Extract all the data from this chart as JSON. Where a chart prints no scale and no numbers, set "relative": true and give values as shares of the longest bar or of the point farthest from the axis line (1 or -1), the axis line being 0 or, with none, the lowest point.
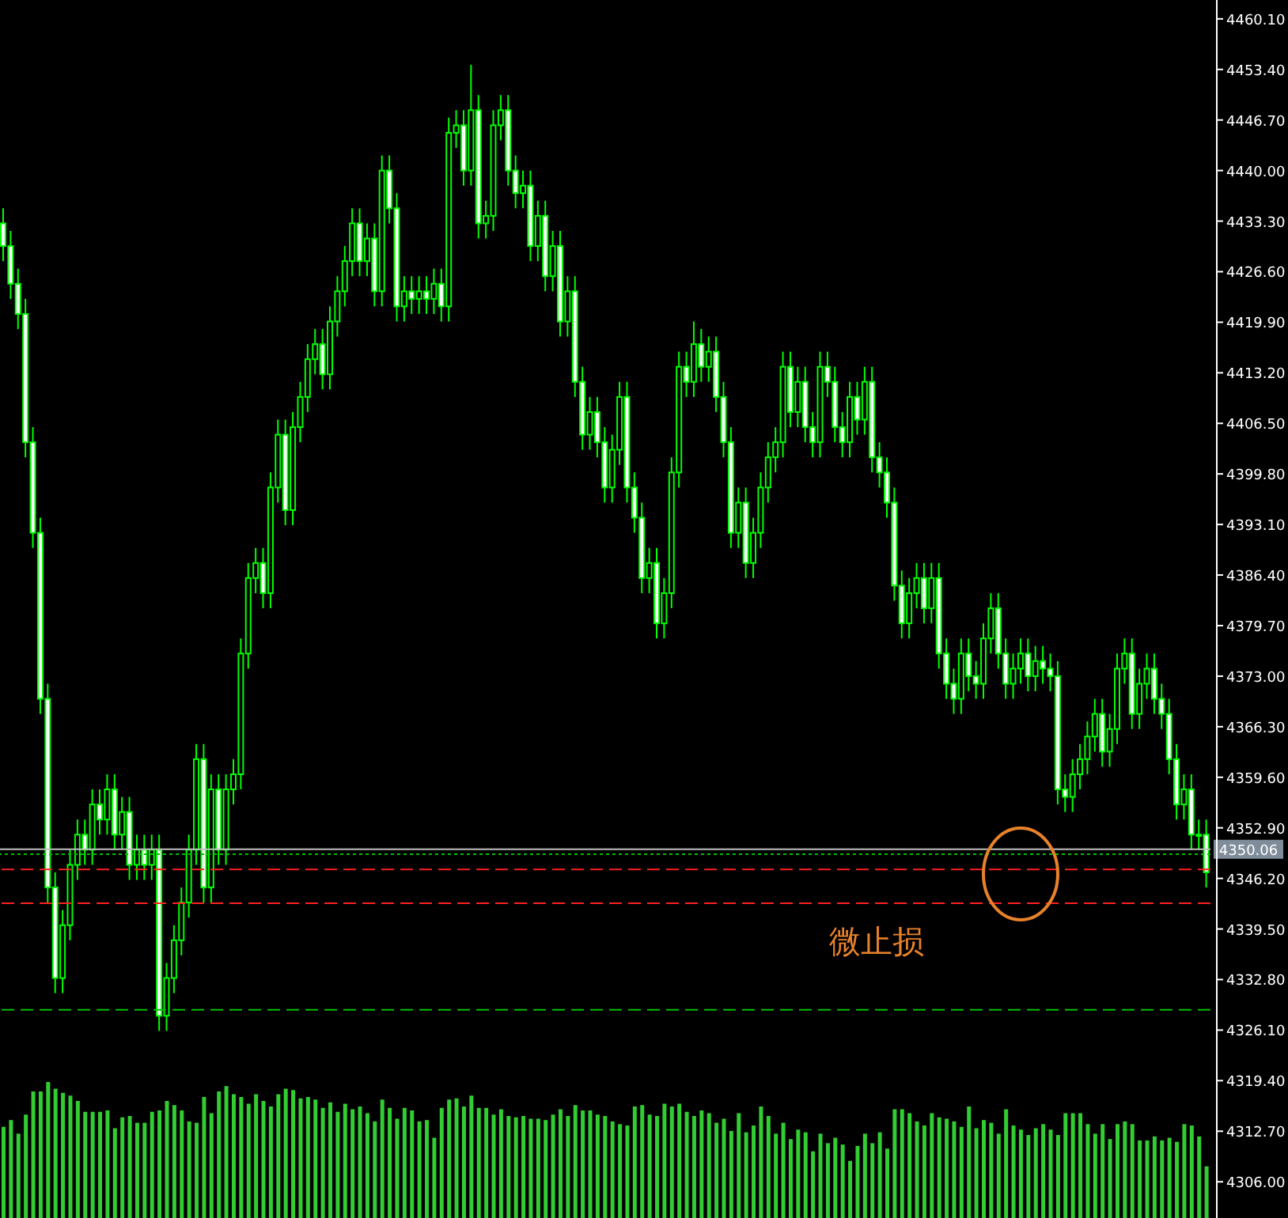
{
  "chart_data": [
    {
      "type": "candlestick",
      "color": "#00ff00",
      "ylim": [
        4301.2,
        4462.6
      ],
      "colors": [
        "#ffffff",
        "#ffffff",
        "#ffffff",
        "#ffffff",
        "#ffffff",
        "#ffffff",
        "#ffffff",
        "#ffffff",
        "#000000",
        "#000000",
        "#000000",
        "#ffffff",
        "#000000",
        "#ffffff",
        "#000000",
        "#ffffff",
        "#000000",
        "#ffffff",
        "#000000",
        "#ffffff",
        "#000000",
        "#ffffff",
        "#000000",
        "#000000",
        "#000000",
        "#000000",
        "#000000",
        "#ffffff",
        "#000000",
        "#ffffff",
        "#000000",
        "#000000",
        "#000000",
        "#000000",
        "#000000",
        "#ffffff",
        "#000000",
        "#000000",
        "#ffffff",
        "#000000",
        "#000000",
        "#000000",
        "#000000",
        "#ffffff",
        "#000000",
        "#000000",
        "#000000",
        "#000000",
        "#ffffff",
        "#000000",
        "#ffffff",
        "#000000",
        "#ffffff",
        "#ffffff",
        "#000000",
        "#ffffff",
        "#000000",
        "#ffffff",
        "#000000",
        "#ffffff",
        "#000000",
        "#000000",
        "#ffffff",
        "#000000",
        "#ffffff",
        "#000000",
        "#000000",
        "#000000",
        "#ffffff",
        "#ffffff",
        "#000000",
        "#ffffff",
        "#000000",
        "#ffffff",
        "#000000",
        "#ffffff",
        "#000000",
        "#ffffff",
        "#ffffff",
        "#000000",
        "#ffffff",
        "#ffffff",
        "#000000",
        "#000000",
        "#ffffff",
        "#ffffff",
        "#ffffff",
        "#000000",
        "#ffffff",
        "#000000",
        "#000000",
        "#000000",
        "#ffffff",
        "#000000",
        "#ffffff",
        "#000000",
        "#ffffff",
        "#ffffff",
        "#ffffff",
        "#000000",
        "#ffffff",
        "#000000",
        "#000000",
        "#000000",
        "#000000",
        "#000000",
        "#ffffff",
        "#000000",
        "#ffffff",
        "#ffffff",
        "#000000",
        "#ffffff",
        "#ffffff",
        "#ffffff",
        "#000000",
        "#ffffff",
        "#000000",
        "#ffffff",
        "#ffffff",
        "#ffffff",
        "#ffffff",
        "#ffffff",
        "#000000",
        "#000000",
        "#ffffff",
        "#000000",
        "#ffffff",
        "#ffffff",
        "#ffffff",
        "#000000",
        "#ffffff",
        "#ffffff",
        "#000000",
        "#000000",
        "#ffffff",
        "#ffffff",
        "#000000",
        "#000000",
        "#ffffff",
        "#000000",
        "#ffffff",
        "#ffffff",
        "#ffffff",
        "#ffffff",
        "#000000",
        "#000000",
        "#000000",
        "#000000",
        "#ffffff",
        "#000000",
        "#000000",
        "#000000",
        "#ffffff",
        "#000000",
        "#000000",
        "#ffffff",
        "#ffffff",
        "#ffffff",
        "#ffffff",
        "#000000",
        "#ffffff",
        "#000000",
        "#ffffff"
      ],
      "yticks": [
        {
          "value": 4306,
          "label": "4306.00"
        },
        {
          "value": 4312.7,
          "label": "4312.70"
        },
        {
          "value": 4319.4,
          "label": "4319.40"
        },
        {
          "value": 4326.1,
          "label": "4326.10"
        },
        {
          "value": 4332.8,
          "label": "4332.80"
        },
        {
          "value": 4339.5,
          "label": "4339.50"
        },
        {
          "value": 4346.2,
          "label": "4346.20"
        },
        {
          "value": 4352.9,
          "label": "4352.90"
        },
        {
          "value": 4359.6,
          "label": "4359.60"
        },
        {
          "value": 4366.3,
          "label": "4366.30"
        },
        {
          "value": 4373,
          "label": "4373.00"
        },
        {
          "value": 4379.7,
          "label": "4379.70"
        },
        {
          "value": 4386.4,
          "label": "4386.40"
        },
        {
          "value": 4393.1,
          "label": "4393.10"
        },
        {
          "value": 4399.8,
          "label": "4399.80"
        },
        {
          "value": 4406.5,
          "label": "4406.50"
        },
        {
          "value": 4413.2,
          "label": "4413.20"
        },
        {
          "value": 4419.9,
          "label": "4419.90"
        },
        {
          "value": 4426.6,
          "label": "4426.60"
        },
        {
          "value": 4433.3,
          "label": "4433.30"
        },
        {
          "value": 4440,
          "label": "4440.00"
        },
        {
          "value": 4446.7,
          "label": "4446.70"
        },
        {
          "value": 4453.4,
          "label": "4453.40"
        },
        {
          "value": 4460.1,
          "label": "4460.10"
        }
      ],
      "tick_labels": "y",
      "annotations": [
        "微止损"
      ],
      "ref_lines": [
        {
          "axis": "y",
          "value": 4350.06,
          "label": "4350.06",
          "color": "#c0c0c0",
          "line_style": "solid"
        },
        {
          "axis": "y",
          "value": 4349.4,
          "color": "#00c000",
          "line_style": "dotted"
        },
        {
          "axis": "y",
          "value": 4347.4,
          "color": "#ff2020",
          "line_style": "dashed"
        },
        {
          "axis": "y",
          "value": 4342.9,
          "color": "#ff2020",
          "line_style": "dashed"
        },
        {
          "axis": "y",
          "value": 4328.8,
          "color": "#00c000",
          "line_style": "dashed"
        }
      ],
      "categories": [
        null,
        null,
        null,
        null,
        null,
        null,
        null,
        null,
        null,
        null,
        null,
        null,
        null,
        null,
        null,
        null,
        null,
        null,
        null,
        null,
        null,
        null,
        null,
        null,
        null,
        null,
        null,
        null,
        null,
        null,
        null,
        null,
        null,
        null,
        null,
        null,
        null,
        null,
        null,
        null,
        null,
        null,
        null,
        null,
        null,
        null,
        null,
        null,
        null,
        null,
        null,
        null,
        null,
        null,
        null,
        null,
        null,
        null,
        null,
        null,
        null,
        null,
        null,
        null,
        null,
        null,
        null,
        null,
        null,
        null,
        null,
        null,
        null,
        null,
        null,
        null,
        null,
        null,
        null,
        null,
        null,
        null,
        null,
        null,
        null,
        null,
        null,
        null,
        null,
        null,
        null,
        null,
        null,
        null,
        null,
        null,
        null,
        null,
        null,
        null,
        null,
        null,
        null,
        null,
        null,
        null,
        null,
        null,
        null,
        null,
        null,
        null,
        null,
        null,
        null,
        null,
        null,
        null,
        null,
        null,
        null,
        null,
        null,
        null,
        null,
        null,
        null,
        null,
        null,
        null,
        null,
        null,
        null,
        null,
        null,
        null,
        null,
        null,
        null,
        null,
        null,
        null,
        null,
        null,
        null,
        null,
        null,
        null,
        null,
        null,
        null,
        null,
        null,
        null,
        null,
        null,
        null,
        null,
        null,
        null,
        null,
        null,
        null
      ],
      "ohlc": [
        [
          4433,
          4435,
          4428,
          4430
        ],
        [
          4430,
          4432,
          4423,
          4425
        ],
        [
          4425,
          4427,
          4419,
          4421
        ],
        [
          4421,
          4423,
          4402,
          4404
        ],
        [
          4404,
          4406,
          4390,
          4392
        ],
        [
          4392,
          4394,
          4368,
          4370
        ],
        [
          4370,
          4372,
          4343,
          4345
        ],
        [
          4345,
          4347,
          4331,
          4333
        ],
        [
          4333,
          4342,
          4331,
          4340
        ],
        [
          4340,
          4350,
          4338,
          4348
        ],
        [
          4348,
          4354,
          4346,
          4352
        ],
        [
          4352,
          4354,
          4348,
          4350
        ],
        [
          4350,
          4358,
          4348,
          4356
        ],
        [
          4356,
          4358,
          4352,
          4354
        ],
        [
          4354,
          4360,
          4352,
          4358
        ],
        [
          4358,
          4360,
          4350,
          4352
        ],
        [
          4352,
          4357,
          4350,
          4355
        ],
        [
          4355,
          4357,
          4346,
          4348
        ],
        [
          4348,
          4352,
          4346,
          4350
        ],
        [
          4350,
          4352,
          4346,
          4348
        ],
        [
          4348,
          4352,
          4346,
          4350
        ],
        [
          4350,
          4352,
          4326,
          4328
        ],
        [
          4328,
          4335,
          4326,
          4333
        ],
        [
          4333,
          4340,
          4331,
          4338
        ],
        [
          4338,
          4345,
          4336,
          4343
        ],
        [
          4343,
          4352,
          4341,
          4350
        ],
        [
          4350,
          4364,
          4348,
          4362
        ],
        [
          4362,
          4364,
          4343,
          4345
        ],
        [
          4345,
          4360,
          4343,
          4358
        ],
        [
          4358,
          4360,
          4348,
          4350
        ],
        [
          4350,
          4360,
          4348,
          4358
        ],
        [
          4358,
          4362,
          4356,
          4360
        ],
        [
          4360,
          4378,
          4358,
          4376
        ],
        [
          4376,
          4388,
          4374,
          4386
        ],
        [
          4386,
          4390,
          4384,
          4388
        ],
        [
          4388,
          4390,
          4382,
          4384
        ],
        [
          4384,
          4400,
          4382,
          4398
        ],
        [
          4398,
          4407,
          4396,
          4405
        ],
        [
          4405,
          4407,
          4393,
          4395
        ],
        [
          4395,
          4408,
          4393,
          4406
        ],
        [
          4406,
          4412,
          4404,
          4410
        ],
        [
          4410,
          4417,
          4408,
          4415
        ],
        [
          4415,
          4419,
          4413,
          4417
        ],
        [
          4417,
          4419,
          4411,
          4413
        ],
        [
          4413,
          4422,
          4411,
          4420
        ],
        [
          4420,
          4426,
          4418,
          4424
        ],
        [
          4424,
          4430,
          4422,
          4428
        ],
        [
          4428,
          4435,
          4426,
          4433
        ],
        [
          4433,
          4435,
          4426,
          4428
        ],
        [
          4428,
          4433,
          4426,
          4431
        ],
        [
          4431,
          4433,
          4422,
          4424
        ],
        [
          4424,
          4442,
          4422,
          4440
        ],
        [
          4440,
          4442,
          4433,
          4435
        ],
        [
          4435,
          4437,
          4420,
          4422
        ],
        [
          4422,
          4426,
          4420,
          4424
        ],
        [
          4424,
          4426,
          4421,
          4423
        ],
        [
          4423,
          4426,
          4421,
          4424
        ],
        [
          4424,
          4426,
          4421,
          4423
        ],
        [
          4423,
          4427,
          4421,
          4425
        ],
        [
          4425,
          4427,
          4420,
          4422
        ],
        [
          4422,
          4447,
          4420,
          4445
        ],
        [
          4445,
          4448,
          4443,
          4446
        ],
        [
          4446,
          4448,
          4438,
          4440
        ],
        [
          4440,
          4454,
          4438,
          4448
        ],
        [
          4448,
          4450,
          4431,
          4433
        ],
        [
          4433,
          4436,
          4431,
          4434
        ],
        [
          4434,
          4448,
          4432,
          4446
        ],
        [
          4446,
          4450,
          4444,
          4448
        ],
        [
          4448,
          4450,
          4438,
          4440
        ],
        [
          4440,
          4442,
          4435,
          4437
        ],
        [
          4437,
          4440,
          4435,
          4438
        ],
        [
          4438,
          4440,
          4428,
          4430
        ],
        [
          4430,
          4436,
          4428,
          4434
        ],
        [
          4434,
          4436,
          4424,
          4426
        ],
        [
          4426,
          4432,
          4424,
          4430
        ],
        [
          4430,
          4432,
          4418,
          4420
        ],
        [
          4420,
          4426,
          4418,
          4424
        ],
        [
          4424,
          4426,
          4410,
          4412
        ],
        [
          4412,
          4414,
          4403,
          4405
        ],
        [
          4405,
          4410,
          4403,
          4408
        ],
        [
          4408,
          4410,
          4402,
          4404
        ],
        [
          4404,
          4406,
          4396,
          4398
        ],
        [
          4398,
          4405,
          4396,
          4403
        ],
        [
          4403,
          4412,
          4401,
          4410
        ],
        [
          4410,
          4412,
          4396,
          4398
        ],
        [
          4398,
          4400,
          4392,
          4394
        ],
        [
          4394,
          4396,
          4384,
          4386
        ],
        [
          4386,
          4390,
          4384,
          4388
        ],
        [
          4388,
          4390,
          4378,
          4380
        ],
        [
          4380,
          4386,
          4378,
          4384
        ],
        [
          4384,
          4402,
          4382,
          4400
        ],
        [
          4400,
          4416,
          4398,
          4414
        ],
        [
          4414,
          4416,
          4410,
          4412
        ],
        [
          4412,
          4420,
          4410,
          4417
        ],
        [
          4417,
          4419,
          4412,
          4414
        ],
        [
          4414,
          4418,
          4412,
          4416
        ],
        [
          4416,
          4418,
          4408,
          4410
        ],
        [
          4410,
          4412,
          4402,
          4404
        ],
        [
          4404,
          4406,
          4390,
          4392
        ],
        [
          4392,
          4398,
          4390,
          4396
        ],
        [
          4396,
          4398,
          4386,
          4388
        ],
        [
          4388,
          4394,
          4386,
          4392
        ],
        [
          4392,
          4400,
          4390,
          4398
        ],
        [
          4398,
          4404,
          4396,
          4402
        ],
        [
          4402,
          4406,
          4400,
          4404
        ],
        [
          4404,
          4416,
          4402,
          4414
        ],
        [
          4414,
          4416,
          4406,
          4408
        ],
        [
          4408,
          4414,
          4406,
          4412
        ],
        [
          4412,
          4414,
          4404,
          4406
        ],
        [
          4406,
          4408,
          4402,
          4404
        ],
        [
          4404,
          4416,
          4402,
          4414
        ],
        [
          4414,
          4416,
          4410,
          4412
        ],
        [
          4412,
          4414,
          4404,
          4406
        ],
        [
          4406,
          4408,
          4402,
          4404
        ],
        [
          4404,
          4412,
          4402,
          4410
        ],
        [
          4410,
          4412,
          4405,
          4407
        ],
        [
          4407,
          4414,
          4405,
          4412
        ],
        [
          4412,
          4414,
          4400,
          4402
        ],
        [
          4402,
          4404,
          4398,
          4400
        ],
        [
          4400,
          4402,
          4394,
          4396
        ],
        [
          4396,
          4398,
          4383,
          4385
        ],
        [
          4385,
          4387,
          4378,
          4380
        ],
        [
          4380,
          4386,
          4378,
          4384
        ],
        [
          4384,
          4388,
          4382,
          4386
        ],
        [
          4386,
          4388,
          4380,
          4382
        ],
        [
          4382,
          4388,
          4380,
          4386
        ],
        [
          4386,
          4388,
          4374,
          4376
        ],
        [
          4376,
          4378,
          4370,
          4372
        ],
        [
          4372,
          4374,
          4368,
          4370
        ],
        [
          4370,
          4378,
          4368,
          4376
        ],
        [
          4376,
          4378,
          4371,
          4373
        ],
        [
          4373,
          4375,
          4370,
          4372
        ],
        [
          4372,
          4380,
          4370,
          4378
        ],
        [
          4378,
          4384,
          4376,
          4382
        ],
        [
          4382,
          4384,
          4374,
          4376
        ],
        [
          4376,
          4378,
          4370,
          4372
        ],
        [
          4372,
          4376,
          4370,
          4374
        ],
        [
          4374,
          4378,
          4372,
          4376
        ],
        [
          4376,
          4378,
          4371,
          4373
        ],
        [
          4373,
          4377,
          4371,
          4375
        ],
        [
          4375,
          4377,
          4372,
          4374
        ],
        [
          4374,
          4376,
          4371,
          4373
        ],
        [
          4373,
          4375,
          4356,
          4358
        ],
        [
          4358,
          4360,
          4355,
          4357
        ],
        [
          4357,
          4362,
          4355,
          4360
        ],
        [
          4360,
          4364,
          4358,
          4362
        ],
        [
          4362,
          4367,
          4360,
          4365
        ],
        [
          4365,
          4370,
          4363,
          4368
        ],
        [
          4368,
          4370,
          4361,
          4363
        ],
        [
          4363,
          4368,
          4361,
          4366
        ],
        [
          4366,
          4376,
          4364,
          4374
        ],
        [
          4374,
          4378,
          4372,
          4376
        ],
        [
          4376,
          4378,
          4366,
          4368
        ],
        [
          4368,
          4374,
          4366,
          4372
        ],
        [
          4372,
          4376,
          4370,
          4374
        ],
        [
          4374,
          4376,
          4368,
          4370
        ],
        [
          4370,
          4372,
          4366,
          4368
        ],
        [
          4368,
          4370,
          4360,
          4362
        ],
        [
          4362,
          4364,
          4354,
          4356
        ],
        [
          4356,
          4360,
          4354,
          4358
        ],
        [
          4358,
          4360,
          4350,
          4352
        ],
        [
          4352,
          4354,
          4350,
          4352
        ],
        [
          4352,
          4354,
          4345,
          4347
        ]
      ]
    },
    {
      "type": "bar",
      "relative": true,
      "color": "#32cd32",
      "tick_labels": false,
      "categories": [
        null,
        null,
        null,
        null,
        null,
        null,
        null,
        null,
        null,
        null,
        null,
        null,
        null,
        null,
        null,
        null,
        null,
        null,
        null,
        null,
        null,
        null,
        null,
        null,
        null,
        null,
        null,
        null,
        null,
        null,
        null,
        null,
        null,
        null,
        null,
        null,
        null,
        null,
        null,
        null,
        null,
        null,
        null,
        null,
        null,
        null,
        null,
        null,
        null,
        null,
        null,
        null,
        null,
        null,
        null,
        null,
        null,
        null,
        null,
        null,
        null,
        null,
        null,
        null,
        null,
        null,
        null,
        null,
        null,
        null,
        null,
        null,
        null,
        null,
        null,
        null,
        null,
        null,
        null,
        null,
        null,
        null,
        null,
        null,
        null,
        null,
        null,
        null,
        null,
        null,
        null,
        null,
        null,
        null,
        null,
        null,
        null,
        null,
        null,
        null,
        null,
        null,
        null,
        null,
        null,
        null,
        null,
        null,
        null,
        null,
        null,
        null,
        null,
        null,
        null,
        null,
        null,
        null,
        null,
        null,
        null,
        null,
        null,
        null,
        null,
        null,
        null,
        null,
        null,
        null,
        null,
        null,
        null,
        null,
        null,
        null,
        null,
        null,
        null,
        null,
        null,
        null,
        null,
        null,
        null,
        null,
        null,
        null,
        null,
        null,
        null,
        null,
        null,
        null,
        null,
        null,
        null,
        null,
        null,
        null,
        null,
        null,
        null
      ],
      "values": [
        0.67,
        0.72,
        0.62,
        0.76,
        0.93,
        0.93,
        1,
        0.95,
        0.92,
        0.9,
        0.86,
        0.78,
        0.78,
        0.78,
        0.79,
        0.66,
        0.74,
        0.75,
        0.7,
        0.7,
        0.78,
        0.79,
        0.86,
        0.83,
        0.79,
        0.71,
        0.7,
        0.89,
        0.77,
        0.93,
        0.97,
        0.91,
        0.89,
        0.84,
        0.91,
        0.86,
        0.82,
        0.91,
        0.95,
        0.94,
        0.88,
        0.89,
        0.87,
        0.81,
        0.85,
        0.78,
        0.84,
        0.8,
        0.82,
        0.77,
        0.71,
        0.87,
        0.81,
        0.73,
        0.81,
        0.79,
        0.71,
        0.72,
        0.59,
        0.81,
        0.87,
        0.88,
        0.82,
        0.9,
        0.81,
        0.81,
        0.76,
        0.8,
        0.75,
        0.74,
        0.75,
        0.73,
        0.73,
        0.72,
        0.76,
        0.8,
        0.75,
        0.83,
        0.79,
        0.79,
        0.76,
        0.75,
        0.71,
        0.69,
        0.68,
        0.82,
        0.83,
        0.76,
        0.75,
        0.84,
        0.82,
        0.84,
        0.78,
        0.75,
        0.79,
        0.77,
        0.7,
        0.73,
        0.64,
        0.77,
        0.63,
        0.68,
        0.82,
        0.75,
        0.62,
        0.7,
        0.58,
        0.65,
        0.63,
        0.49,
        0.62,
        0.55,
        0.59,
        0.54,
        0.42,
        0.53,
        0.62,
        0.55,
        0.63,
        0.51,
        0.8,
        0.8,
        0.77,
        0.71,
        0.68,
        0.77,
        0.74,
        0.73,
        0.71,
        0.67,
        0.82,
        0.66,
        0.72,
        0.7,
        0.62,
        0.8,
        0.68,
        0.65,
        0.61,
        0.66,
        0.69,
        0.65,
        0.61,
        0.77,
        0.77,
        0.77,
        0.69,
        0.62,
        0.69,
        0.58,
        0.69,
        0.71,
        0.69,
        0.57,
        0.57,
        0.6,
        0.57,
        0.59,
        0.56,
        0.69,
        0.68,
        0.6,
        0.38
      ]
    }
  ]
}
